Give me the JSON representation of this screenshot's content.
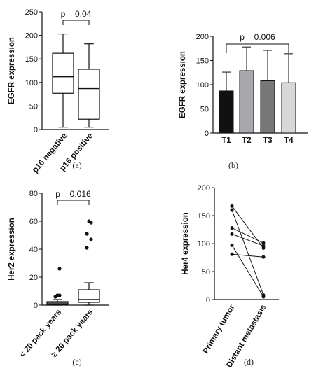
{
  "chart_data": [
    {
      "panel": "(a)",
      "type": "box",
      "ylabel": "EGFR expression",
      "ylim": [
        0,
        250
      ],
      "yticks": [
        0,
        50,
        100,
        150,
        200,
        250
      ],
      "categories": [
        "p16 negative",
        "p16 positive"
      ],
      "boxes": [
        {
          "min": 5,
          "q1": 77,
          "median": 112,
          "q3": 162,
          "max": 203
        },
        {
          "min": 5,
          "q1": 22,
          "median": 87,
          "q3": 128,
          "max": 182
        }
      ],
      "annotation": "p = 0.04"
    },
    {
      "panel": "(b)",
      "type": "bar",
      "ylabel": "EGFR expression",
      "ylim": [
        0,
        200
      ],
      "yticks": [
        0,
        50,
        100,
        150,
        200
      ],
      "categories": [
        "T1",
        "T2",
        "T3",
        "T4"
      ],
      "values": [
        87,
        129,
        108,
        104
      ],
      "error_upper": [
        126,
        178,
        171,
        164
      ],
      "colors": [
        "#111111",
        "#a9a9ad",
        "#777777",
        "#d7d7d7"
      ],
      "annotation": "p = 0.006"
    },
    {
      "panel": "(c)",
      "type": "box",
      "ylabel": "Her2 expression",
      "ylim": [
        0,
        80
      ],
      "yticks": [
        0,
        20,
        40,
        60,
        80
      ],
      "categories": [
        "< 20 pack years",
        "≥ 20 pack years"
      ],
      "boxes": [
        {
          "min": 0,
          "q1": 0.5,
          "median": 1.5,
          "q3": 2.5,
          "max": 4,
          "outliers": [
            7,
            7,
            6,
            26
          ]
        },
        {
          "min": 0,
          "q1": 2,
          "median": 4,
          "q3": 11,
          "max": 16,
          "outliers": [
            60,
            59,
            51,
            47,
            41
          ]
        }
      ],
      "annotation": "p = 0.016"
    },
    {
      "panel": "(d)",
      "type": "paired",
      "ylabel": "Her4 expression",
      "ylim": [
        0,
        200
      ],
      "yticks": [
        0,
        50,
        100,
        150,
        200
      ],
      "categories": [
        "Primary tumor",
        "Distant metastasis"
      ],
      "pairs": [
        [
          167,
          92
        ],
        [
          160,
          8
        ],
        [
          128,
          101
        ],
        [
          117,
          96
        ],
        [
          97,
          5
        ],
        [
          81,
          76
        ]
      ]
    }
  ]
}
